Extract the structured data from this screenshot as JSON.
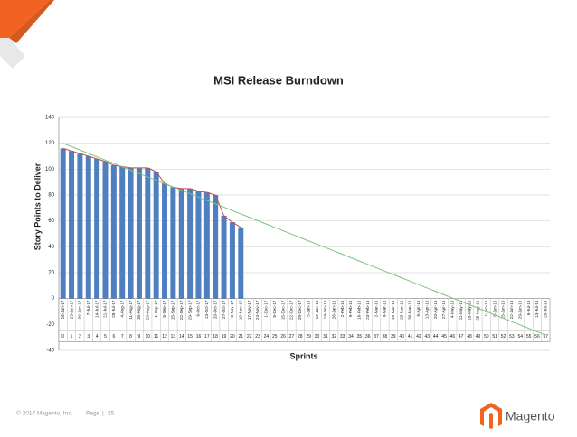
{
  "chart_data": {
    "type": "bar",
    "title": "MSI Release Burndown",
    "y_label": "Story Points to Deliver",
    "x_label": "Sprints",
    "categories": [
      "0",
      "1",
      "2",
      "3",
      "4",
      "5",
      "6",
      "7",
      "8",
      "9",
      "10",
      "11",
      "12",
      "13",
      "14",
      "15",
      "16",
      "17",
      "18",
      "19",
      "20",
      "21",
      "22",
      "23",
      "24",
      "25",
      "26",
      "27",
      "28",
      "29",
      "30",
      "31",
      "32",
      "33",
      "34",
      "35",
      "36",
      "37",
      "38",
      "39",
      "40",
      "41",
      "42",
      "43",
      "44",
      "45",
      "46",
      "47",
      "48",
      "49",
      "50",
      "51",
      "52",
      "53",
      "54",
      "55",
      "56",
      "57"
    ],
    "dates": [
      "16-Jun-17",
      "23-Jun-17",
      "30-Jun-17",
      "7-Jul-17",
      "14-Jul-17",
      "21-Jul-17",
      "28-Jul-17",
      "4-Aug-17",
      "11-Aug-17",
      "18-Aug-17",
      "25-Aug-17",
      "1-Sep-17",
      "8-Sep-17",
      "15-Sep-17",
      "22-Sep-17",
      "29-Sep-17",
      "6-Oct-17",
      "13-Oct-17",
      "20-Oct-17",
      "27-Oct-17",
      "3-Nov-17",
      "10-Nov-17",
      "17-Nov-17",
      "24-Nov-17",
      "1-Dec-17",
      "8-Dec-17",
      "15-Dec-17",
      "22-Dec-17",
      "29-Dec-17",
      "5-Jan-18",
      "12-Jan-18",
      "19-Jan-18",
      "26-Jan-18",
      "2-Feb-18",
      "9-Feb-18",
      "16-Feb-18",
      "23-Feb-18",
      "2-Mar-18",
      "9-Mar-18",
      "16-Mar-18",
      "23-Mar-18",
      "30-Mar-18",
      "6-Apr-18",
      "13-Apr-18",
      "20-Apr-18",
      "27-Apr-18",
      "4-May-18",
      "11-May-18",
      "18-May-18",
      "25-May-18",
      "1-Jun-18",
      "8-Jun-18",
      "15-Jun-18",
      "22-Jun-18",
      "29-Jun-18",
      "6-Jul-18",
      "13-Jul-18",
      "20-Jul-18"
    ],
    "series": [
      {
        "kind": "bar",
        "color": "#4f7fbf",
        "values": [
          116,
          114,
          112,
          110,
          108,
          106,
          103,
          102,
          101,
          101,
          101,
          98,
          89,
          86,
          85,
          85,
          83,
          82,
          80,
          64,
          59,
          55,
          null,
          null,
          null,
          null,
          null,
          null,
          null,
          null,
          null,
          null,
          null,
          null,
          null,
          null,
          null,
          null,
          null,
          null,
          null,
          null,
          null,
          null,
          null,
          null,
          null,
          null,
          null,
          null,
          null,
          null,
          null,
          null,
          null,
          null,
          null,
          null
        ]
      },
      {
        "kind": "line",
        "color": "#c0504d",
        "values": [
          116,
          114,
          112,
          110,
          108,
          106,
          103,
          102,
          101,
          101,
          101,
          98,
          89,
          86,
          85,
          85,
          83,
          82,
          80,
          64,
          59,
          55,
          null,
          null,
          null,
          null,
          null,
          null,
          null,
          null,
          null,
          null,
          null,
          null,
          null,
          null,
          null,
          null,
          null,
          null,
          null,
          null,
          null,
          null,
          null,
          null,
          null,
          null,
          null,
          null,
          null,
          null,
          null,
          null,
          null,
          null,
          null,
          null
        ]
      },
      {
        "kind": "line",
        "color": "#7cc47f",
        "values": [
          120,
          117.4,
          114.8,
          112.2,
          109.6,
          107,
          104.4,
          101.8,
          99.2,
          96.6,
          94,
          91.4,
          88.8,
          86.2,
          83.6,
          81,
          78.4,
          75.8,
          73.2,
          70.6,
          68,
          65.4,
          62.8,
          60.2,
          57.6,
          55,
          52.4,
          49.8,
          47.2,
          44.6,
          42,
          39.4,
          36.8,
          34.2,
          31.6,
          29,
          26.4,
          23.8,
          21.2,
          18.6,
          16,
          13.4,
          10.8,
          8.2,
          5.6,
          3,
          0.4,
          -2.2,
          -4.8,
          -7.4,
          -10,
          -12.6,
          -15.2,
          -17.8,
          -20.4,
          -23,
          -25.6,
          -28.2
        ]
      }
    ],
    "ylim": [
      -40,
      140
    ],
    "yticks": [
      -40,
      -20,
      0,
      20,
      40,
      60,
      80,
      100,
      120,
      140
    ],
    "grid": true
  },
  "footer": {
    "copyright": "© 2017 Magento, Inc.",
    "page_label": "Page",
    "page_number": "25",
    "brand": "Magento"
  }
}
